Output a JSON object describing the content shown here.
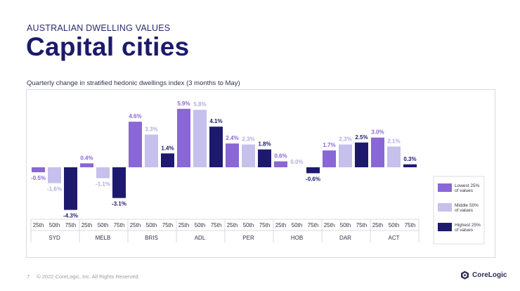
{
  "header": {
    "eyebrow": "AUSTRALIAN DWELLING VALUES",
    "title": "Capital cities"
  },
  "footer": {
    "page_number": "7",
    "copyright": "© 2022 CoreLogic, Inc. All Rights Reserved.",
    "brand": "CoreLogic"
  },
  "colors": {
    "lowest": "#8a67d6",
    "middle": "#c5c1ec",
    "highest": "#1d1a6e",
    "label_lowest": "#8a67d6",
    "label_middle": "#b3acdf",
    "label_highest": "#1d1a6e"
  },
  "chart_data": {
    "type": "bar",
    "title": "Quarterly change in stratified hedonic dwellings index (3 months to May)",
    "categories": [
      "SYD",
      "MELB",
      "BRIS",
      "ADL",
      "PER",
      "HOB",
      "DAR",
      "ACT"
    ],
    "sub_categories": [
      "25th",
      "50th",
      "75th"
    ],
    "series": [
      {
        "name": "Lowest 25% of values",
        "key": "lowest",
        "values": [
          -0.5,
          0.4,
          4.6,
          5.9,
          2.4,
          0.6,
          1.7,
          3.0
        ],
        "labels": [
          "-0.5%",
          "0.4%",
          "4.6%",
          "5.9%",
          "2.4%",
          "0.6%",
          "1.7%",
          "3.0%"
        ]
      },
      {
        "name": "Middle 50% of values",
        "key": "middle",
        "values": [
          -1.6,
          -1.1,
          3.3,
          5.8,
          2.3,
          0.0,
          2.3,
          2.1
        ],
        "labels": [
          "-1.6%",
          "-1.1%",
          "3.3%",
          "5.8%",
          "2.3%",
          "0.0%",
          "2.3%",
          "2.1%"
        ]
      },
      {
        "name": "Highest 25% of values",
        "key": "highest",
        "values": [
          -4.3,
          -3.1,
          1.4,
          4.1,
          1.8,
          -0.6,
          2.5,
          0.3
        ],
        "labels": [
          "-4.3%",
          "-3.1%",
          "1.4%",
          "4.1%",
          "1.8%",
          "-0.6%",
          "2.5%",
          "0.3%"
        ]
      }
    ],
    "legend": [
      {
        "line1": "Lowest 25%",
        "line2": "of values",
        "key": "lowest"
      },
      {
        "line1": "Middle 50%",
        "line2": "of values",
        "key": "middle"
      },
      {
        "line1": "Highest 25%",
        "line2": "of values",
        "key": "highest"
      }
    ],
    "legend_position": "right",
    "ylim": [
      -5,
      7
    ],
    "grid": false
  }
}
